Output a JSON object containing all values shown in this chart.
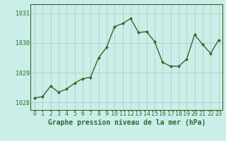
{
  "x": [
    0,
    1,
    2,
    3,
    4,
    5,
    6,
    7,
    8,
    9,
    10,
    11,
    12,
    13,
    14,
    15,
    16,
    17,
    18,
    19,
    20,
    21,
    22,
    23
  ],
  "y": [
    1028.15,
    1028.2,
    1028.55,
    1028.35,
    1028.45,
    1028.65,
    1028.8,
    1028.85,
    1029.5,
    1029.85,
    1030.55,
    1030.65,
    1030.82,
    1030.35,
    1030.38,
    1030.05,
    1029.35,
    1029.22,
    1029.22,
    1029.45,
    1030.28,
    1029.95,
    1029.65,
    1030.1
  ],
  "line_color": "#2d6b2d",
  "marker_color": "#2d6b2d",
  "bg_color": "#cceee8",
  "grid_color": "#b0ccc8",
  "ylabel_color": "#2d6b2d",
  "title": "Graphe pression niveau de la mer (hPa)",
  "ylim_min": 1027.75,
  "ylim_max": 1031.3,
  "yticks": [
    1028,
    1029,
    1030,
    1031
  ],
  "xticks": [
    0,
    1,
    2,
    3,
    4,
    5,
    6,
    7,
    8,
    9,
    10,
    11,
    12,
    13,
    14,
    15,
    16,
    17,
    18,
    19,
    20,
    21,
    22,
    23
  ],
  "title_fontsize": 7.0,
  "tick_fontsize": 6.0,
  "linewidth": 1.0,
  "markersize": 2.5
}
